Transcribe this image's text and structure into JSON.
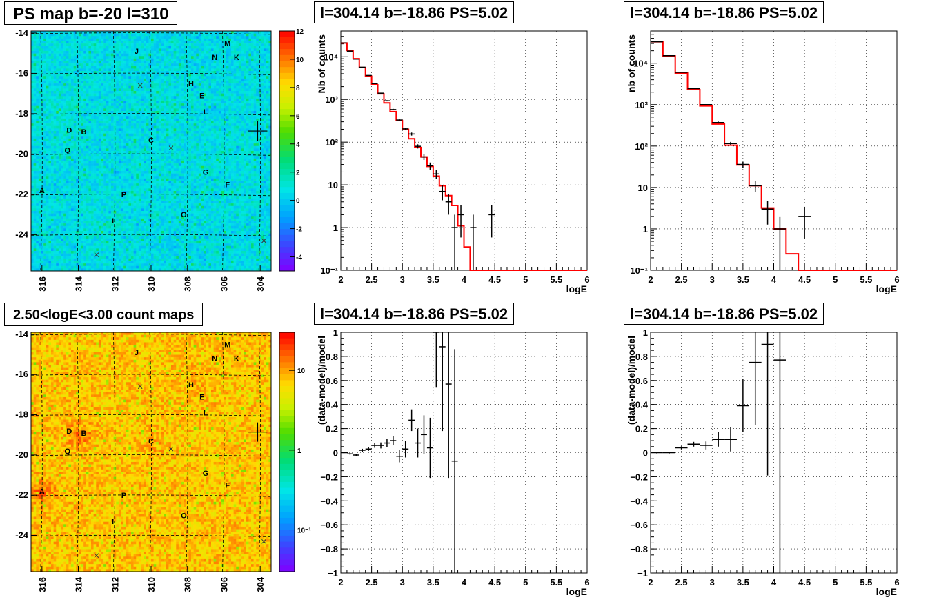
{
  "panels": {
    "ps_map": {
      "title": "PS map b=-20 l=310",
      "colorbar_ticks": [
        "12",
        "10",
        "8",
        "6",
        "4",
        "2",
        "0",
        "-2",
        "-4"
      ],
      "colorbar_values": [
        12,
        10,
        8,
        6,
        4,
        2,
        0,
        -2,
        -4
      ],
      "colorbar_range": [
        -5,
        12
      ],
      "x_ticks": [
        "316",
        "314",
        "312",
        "310",
        "308",
        "306",
        "304"
      ],
      "y_ticks": [
        "-14",
        "-16",
        "-18",
        "-20",
        "-22",
        "-24"
      ],
      "x_tick_values": [
        316,
        314,
        312,
        310,
        308,
        306,
        304
      ],
      "y_tick_values": [
        -14,
        -16,
        -18,
        -20,
        -22,
        -24
      ]
    },
    "count_map": {
      "title": "2.50<logE<3.00 count maps",
      "colorbar_ticks": [
        "10",
        "1",
        "10⁻¹"
      ],
      "colorbar_log_values": [
        10,
        1,
        0.1
      ],
      "colorbar_range": [
        0.03,
        30
      ],
      "x_ticks": [
        "316",
        "314",
        "312",
        "310",
        "308",
        "306",
        "304"
      ],
      "y_ticks": [
        "-14",
        "-16",
        "-18",
        "-20",
        "-22",
        "-24"
      ],
      "x_tick_values": [
        316,
        314,
        312,
        310,
        308,
        306,
        304
      ],
      "y_tick_values": [
        -14,
        -16,
        -18,
        -20,
        -22,
        -24
      ]
    },
    "map_common": {
      "l_range": [
        316.6,
        303.4
      ],
      "b_range": [
        -25.8,
        -13.9
      ],
      "source_labels": [
        {
          "name": "M",
          "l": 305.8,
          "b": -14.5
        },
        {
          "name": "J",
          "l": 310.8,
          "b": -14.9
        },
        {
          "name": "N",
          "l": 306.5,
          "b": -15.2
        },
        {
          "name": "K",
          "l": 305.3,
          "b": -15.2
        },
        {
          "name": "H",
          "l": 307.8,
          "b": -16.5
        },
        {
          "name": "E",
          "l": 307.2,
          "b": -17.1
        },
        {
          "name": "L",
          "l": 307.0,
          "b": -17.9
        },
        {
          "name": "D",
          "l": 314.5,
          "b": -18.8
        },
        {
          "name": "B",
          "l": 313.7,
          "b": -18.9
        },
        {
          "name": "C",
          "l": 310.0,
          "b": -19.3
        },
        {
          "name": "Q",
          "l": 314.6,
          "b": -19.8
        },
        {
          "name": "G",
          "l": 307.0,
          "b": -20.9
        },
        {
          "name": "F",
          "l": 305.8,
          "b": -21.5
        },
        {
          "name": "A",
          "l": 316.0,
          "b": -21.8
        },
        {
          "name": "P",
          "l": 311.5,
          "b": -22.0
        },
        {
          "name": "O",
          "l": 308.2,
          "b": -23.0
        },
        {
          "name": "I",
          "l": 312.1,
          "b": -23.3
        }
      ],
      "x_markers": [
        {
          "l": 310.6,
          "b": -16.6
        },
        {
          "l": 308.9,
          "b": -19.7
        },
        {
          "l": 313.0,
          "b": -25.0
        },
        {
          "l": 303.8,
          "b": -24.3
        }
      ],
      "cross_marker": {
        "l": 304.14,
        "b": -18.86
      }
    },
    "spec1": {
      "title": "l=304.14 b=-18.86 PS=5.02",
      "xlabel": "logE",
      "ylabel": "Nb of counts",
      "x_ticks": [
        "2",
        "2.5",
        "3",
        "3.5",
        "4",
        "4.5",
        "5",
        "5.5",
        "6"
      ],
      "y_ticks": [
        "10⁻¹",
        "1",
        "10",
        "10²",
        "10³",
        "10⁴"
      ],
      "y_tick_values": [
        0.1,
        1,
        10,
        100,
        1000,
        10000
      ],
      "xlim": [
        2,
        6
      ],
      "ylim": [
        0.1,
        40000
      ]
    },
    "spec2": {
      "title": "l=304.14 b=-18.86 PS=5.02",
      "xlabel": "logE",
      "ylabel": "nb of counts",
      "x_ticks": [
        "2",
        "2.5",
        "3",
        "3.5",
        "4",
        "4.5",
        "5",
        "5.5",
        "6"
      ],
      "y_ticks": [
        "10⁻¹",
        "1",
        "10",
        "10²",
        "10³",
        "10⁴"
      ],
      "y_tick_values": [
        0.1,
        1,
        10,
        100,
        1000,
        10000
      ],
      "xlim": [
        2,
        6
      ],
      "ylim": [
        0.1,
        60000
      ]
    },
    "res1": {
      "title": "l=304.14 b=-18.86 PS=5.02",
      "xlabel": "logE",
      "ylabel": "(data-model)/model",
      "x_ticks": [
        "2",
        "2.5",
        "3",
        "3.5",
        "4",
        "4.5",
        "5",
        "5.5",
        "6"
      ],
      "y_ticks": [
        "1",
        "0.8",
        "0.6",
        "0.4",
        "0.2",
        "0",
        "−0.2",
        "−0.4",
        "−0.6",
        "−0.8",
        "−1"
      ],
      "y_tick_values": [
        1,
        0.8,
        0.6,
        0.4,
        0.2,
        0,
        -0.2,
        -0.4,
        -0.6,
        -0.8,
        -1
      ],
      "xlim": [
        2,
        6
      ],
      "ylim": [
        -1,
        1
      ]
    },
    "res2": {
      "title": "l=304.14 b=-18.86 PS=5.02",
      "xlabel": "logE",
      "ylabel": "(data-model)/model",
      "x_ticks": [
        "2",
        "2.5",
        "3",
        "3.5",
        "4",
        "4.5",
        "5",
        "5.5",
        "6"
      ],
      "y_ticks": [
        "1",
        "0.8",
        "0.6",
        "0.4",
        "0.2",
        "0",
        "−0.2",
        "−0.4",
        "−0.6",
        "−0.8",
        "−1"
      ],
      "y_tick_values": [
        1,
        0.8,
        0.6,
        0.4,
        0.2,
        0,
        -0.2,
        -0.4,
        -0.6,
        -0.8,
        -1
      ],
      "xlim": [
        2,
        6
      ],
      "ylim": [
        -1,
        1
      ]
    }
  },
  "colors": {
    "model": "#ff0000",
    "data": "#000000",
    "grid": "#000000"
  },
  "chart_data": [
    {
      "type": "line",
      "panel": "spec1",
      "xlabel": "logE",
      "ylabel": "Nb of counts",
      "log_y": true,
      "xlim": [
        2,
        6
      ],
      "ylim": [
        0.1,
        40000
      ],
      "series": [
        {
          "kind": "model_histogram",
          "edges": [
            2.0,
            2.1,
            2.2,
            2.3,
            2.4,
            2.5,
            2.6,
            2.7,
            2.8,
            2.9,
            3.0,
            3.1,
            3.2,
            3.3,
            3.4,
            3.5,
            3.6,
            3.7,
            3.8,
            3.9,
            4.0,
            4.1,
            4.2,
            6.0
          ],
          "values": [
            21000,
            14000,
            9000,
            5600,
            3500,
            2200,
            1350,
            830,
            520,
            320,
            200,
            120,
            75,
            45,
            27,
            16,
            9.5,
            5.6,
            3.3,
            1.1,
            0.35,
            0.1,
            0.1
          ]
        },
        {
          "kind": "data_points",
          "points": [
            {
              "x": 2.05,
              "y": 21000,
              "xerr": 0.05
            },
            {
              "x": 2.15,
              "y": 13500,
              "xerr": 0.05
            },
            {
              "x": 2.25,
              "y": 8800,
              "xerr": 0.05
            },
            {
              "x": 2.35,
              "y": 5700,
              "xerr": 0.05
            },
            {
              "x": 2.45,
              "y": 3650,
              "xerr": 0.05
            },
            {
              "x": 2.55,
              "y": 2350,
              "xerr": 0.05
            },
            {
              "x": 2.65,
              "y": 1400,
              "xerr": 0.05
            },
            {
              "x": 2.75,
              "y": 930,
              "xerr": 0.05
            },
            {
              "x": 2.85,
              "y": 580,
              "xerr": 0.05
            },
            {
              "x": 2.95,
              "y": 330,
              "xerr": 0.05
            },
            {
              "x": 3.05,
              "y": 205,
              "xerr": 0.05
            },
            {
              "x": 3.15,
              "y": 155,
              "xerr": 0.05
            },
            {
              "x": 3.25,
              "y": 80,
              "xerr": 0.05
            },
            {
              "x": 3.35,
              "y": 45,
              "xerr": 0.05
            },
            {
              "x": 3.45,
              "y": 28,
              "xerr": 0.05
            },
            {
              "x": 3.55,
              "y": 18,
              "xerr": 0.05
            },
            {
              "x": 3.65,
              "y": 7,
              "xerr": 0.05
            },
            {
              "x": 3.75,
              "y": 4,
              "xerr": 0.05
            },
            {
              "x": 3.85,
              "y": 1,
              "xerr": 0.05
            },
            {
              "x": 3.95,
              "y": 2,
              "xerr": 0.05
            },
            {
              "x": 4.15,
              "y": 1,
              "xerr": 0.05
            },
            {
              "x": 4.45,
              "y": 2,
              "xerr": 0.05
            }
          ]
        }
      ]
    },
    {
      "type": "line",
      "panel": "spec2",
      "xlabel": "logE",
      "ylabel": "nb of counts",
      "log_y": true,
      "xlim": [
        2,
        6
      ],
      "ylim": [
        0.1,
        60000
      ],
      "series": [
        {
          "kind": "model_histogram",
          "edges": [
            2.0,
            2.2,
            2.4,
            2.6,
            2.8,
            3.0,
            3.2,
            3.4,
            3.6,
            3.8,
            4.0,
            4.2,
            4.4,
            6.0
          ],
          "values": [
            33000,
            15000,
            5800,
            2300,
            930,
            340,
            105,
            35,
            11,
            3.2,
            1,
            0.25,
            0.1
          ]
        },
        {
          "kind": "data_points",
          "points": [
            {
              "x": 2.1,
              "y": 33000,
              "xerr": 0.1
            },
            {
              "x": 2.3,
              "y": 15200,
              "xerr": 0.1
            },
            {
              "x": 2.5,
              "y": 6000,
              "xerr": 0.1
            },
            {
              "x": 2.7,
              "y": 2450,
              "xerr": 0.1
            },
            {
              "x": 2.9,
              "y": 1000,
              "xerr": 0.1
            },
            {
              "x": 3.1,
              "y": 370,
              "xerr": 0.1
            },
            {
              "x": 3.3,
              "y": 115,
              "xerr": 0.1
            },
            {
              "x": 3.5,
              "y": 36,
              "xerr": 0.1
            },
            {
              "x": 3.7,
              "y": 11,
              "xerr": 0.1
            },
            {
              "x": 3.9,
              "y": 3,
              "xerr": 0.1
            },
            {
              "x": 4.1,
              "y": 1,
              "xerr": 0.1
            },
            {
              "x": 4.5,
              "y": 2,
              "xerr": 0.1
            }
          ]
        }
      ]
    },
    {
      "type": "scatter",
      "panel": "res1",
      "xlabel": "logE",
      "ylabel": "(data-model)/model",
      "xlim": [
        2,
        6
      ],
      "ylim": [
        -1,
        1
      ],
      "points": [
        {
          "x": 2.05,
          "y": 0.0,
          "xerr": 0.05,
          "yerr": 0.005
        },
        {
          "x": 2.15,
          "y": -0.01,
          "xerr": 0.05,
          "yerr": 0.007
        },
        {
          "x": 2.25,
          "y": -0.02,
          "xerr": 0.05,
          "yerr": 0.009
        },
        {
          "x": 2.35,
          "y": 0.02,
          "xerr": 0.05,
          "yerr": 0.012
        },
        {
          "x": 2.45,
          "y": 0.03,
          "xerr": 0.05,
          "yerr": 0.015
        },
        {
          "x": 2.55,
          "y": 0.06,
          "xerr": 0.05,
          "yerr": 0.02
        },
        {
          "x": 2.65,
          "y": 0.06,
          "xerr": 0.05,
          "yerr": 0.025
        },
        {
          "x": 2.75,
          "y": 0.08,
          "xerr": 0.05,
          "yerr": 0.033
        },
        {
          "x": 2.85,
          "y": 0.1,
          "xerr": 0.05,
          "yerr": 0.04
        },
        {
          "x": 2.95,
          "y": -0.03,
          "xerr": 0.05,
          "yerr": 0.05
        },
        {
          "x": 3.05,
          "y": 0.03,
          "xerr": 0.05,
          "yerr": 0.07
        },
        {
          "x": 3.15,
          "y": 0.27,
          "xerr": 0.05,
          "yerr": 0.09
        },
        {
          "x": 3.25,
          "y": 0.08,
          "xerr": 0.05,
          "yerr": 0.12
        },
        {
          "x": 3.35,
          "y": 0.15,
          "xerr": 0.05,
          "yerr": 0.16
        },
        {
          "x": 3.45,
          "y": 0.04,
          "xerr": 0.05,
          "yerr": 0.25
        },
        {
          "x": 3.55,
          "y": 1.0,
          "xerr": 0.05,
          "yerr": 0.46
        },
        {
          "x": 3.65,
          "y": 0.88,
          "xerr": 0.05,
          "yerr": 0.7
        },
        {
          "x": 3.75,
          "y": 0.57,
          "xerr": 0.05,
          "yerr": 0.78
        },
        {
          "x": 3.85,
          "y": -0.07,
          "xerr": 0.05,
          "yerr": 0.93
        }
      ]
    },
    {
      "type": "scatter",
      "panel": "res2",
      "xlabel": "logE",
      "ylabel": "(data-model)/model",
      "xlim": [
        2,
        6
      ],
      "ylim": [
        -1,
        1
      ],
      "points": [
        {
          "x": 2.1,
          "y": 0.0,
          "xerr": 0.1,
          "yerr": 0.006
        },
        {
          "x": 2.3,
          "y": 0.0,
          "xerr": 0.1,
          "yerr": 0.008
        },
        {
          "x": 2.5,
          "y": 0.04,
          "xerr": 0.1,
          "yerr": 0.013
        },
        {
          "x": 2.7,
          "y": 0.07,
          "xerr": 0.1,
          "yerr": 0.02
        },
        {
          "x": 2.9,
          "y": 0.06,
          "xerr": 0.1,
          "yerr": 0.033
        },
        {
          "x": 3.1,
          "y": 0.11,
          "xerr": 0.1,
          "yerr": 0.06
        },
        {
          "x": 3.3,
          "y": 0.11,
          "xerr": 0.1,
          "yerr": 0.1
        },
        {
          "x": 3.5,
          "y": 0.39,
          "xerr": 0.1,
          "yerr": 0.22
        },
        {
          "x": 3.7,
          "y": 0.75,
          "xerr": 0.1,
          "yerr": 0.52
        },
        {
          "x": 3.9,
          "y": 0.9,
          "xerr": 0.1,
          "yerr": 1.09
        },
        {
          "x": 4.1,
          "y": 0.77,
          "xerr": 0.1,
          "yerr": 1.8
        }
      ]
    }
  ]
}
